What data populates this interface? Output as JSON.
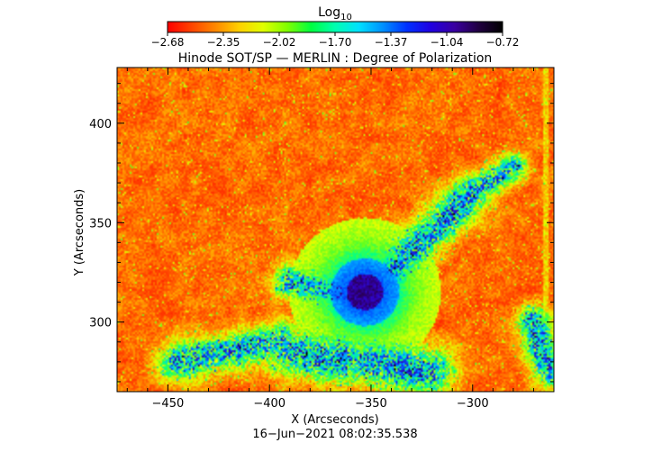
{
  "colorbar": {
    "label": "Log",
    "label_sub": "10",
    "ticks": [
      "−2.68",
      "−2.35",
      "−2.02",
      "−1.70",
      "−1.37",
      "−1.04",
      "−0.72"
    ],
    "colors": [
      "#ff0000",
      "#ff4400",
      "#ff8800",
      "#ffd000",
      "#e0ff00",
      "#80ff00",
      "#00ff40",
      "#00ffb0",
      "#00e0ff",
      "#0090ff",
      "#0030ff",
      "#2000e0",
      "#3a00a0",
      "#200040",
      "#000000"
    ]
  },
  "chart_data": {
    "type": "heatmap",
    "title": "Hinode SOT/SP — MERLIN : Degree of Polarization",
    "xlabel": "X (Arcseconds)",
    "ylabel": "Y (Arcseconds)",
    "xlim": [
      -475,
      -260
    ],
    "ylim": [
      265,
      428
    ],
    "x_ticks": [
      -450,
      -400,
      -350,
      -300
    ],
    "x_tick_labels": [
      "−450",
      "−400",
      "−350",
      "−300"
    ],
    "y_ticks": [
      300,
      350,
      400
    ],
    "y_tick_labels": [
      "300",
      "350",
      "400"
    ],
    "value_range": [
      -2.68,
      -0.72
    ],
    "features": {
      "sunspot_center": [
        -353,
        315
      ],
      "umbra_radius": 9,
      "penumbra_radius": 17,
      "plage_lanes": [
        {
          "from": [
            -340,
            325
          ],
          "to": [
            -300,
            365
          ],
          "width": 7
        },
        {
          "from": [
            -300,
            365
          ],
          "to": [
            -280,
            378
          ],
          "width": 5
        },
        {
          "from": [
            -390,
            285
          ],
          "to": [
            -320,
            275
          ],
          "width": 9
        },
        {
          "from": [
            -445,
            280
          ],
          "to": [
            -395,
            290
          ],
          "width": 7
        },
        {
          "from": [
            -390,
            320
          ],
          "to": [
            -365,
            315
          ],
          "width": 6
        },
        {
          "from": [
            -270,
            300
          ],
          "to": [
            -262,
            275
          ],
          "width": 6
        }
      ]
    }
  },
  "footer": {
    "timestamp": "16−Jun−2021 08:02:35.538"
  }
}
